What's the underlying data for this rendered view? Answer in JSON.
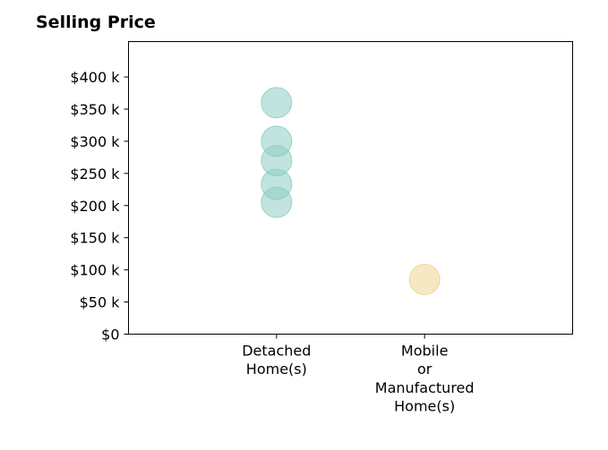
{
  "chart_data": {
    "type": "scatter",
    "title": "Selling Price",
    "xlabel": "",
    "ylabel": "",
    "categories": [
      [
        "Detached",
        "Home(s)"
      ],
      [
        "Mobile",
        "or",
        "Manufactured",
        "Home(s)"
      ]
    ],
    "y_ticks": [
      {
        "value": 0,
        "label": "$0"
      },
      {
        "value": 50000,
        "label": "$50 k"
      },
      {
        "value": 100000,
        "label": "$100 k"
      },
      {
        "value": 150000,
        "label": "$150 k"
      },
      {
        "value": 200000,
        "label": "$200 k"
      },
      {
        "value": 250000,
        "label": "$250 k"
      },
      {
        "value": 300000,
        "label": "$300 k"
      },
      {
        "value": 350000,
        "label": "$350 k"
      },
      {
        "value": 400000,
        "label": "$400 k"
      }
    ],
    "ylim": [
      0,
      455000
    ],
    "xlim": [
      -1,
      2
    ],
    "grid": false,
    "series": [
      {
        "category_index": 0,
        "color": "#8ecdc4",
        "edge": "#7cc4ba",
        "values": [
          205000,
          233000,
          270000,
          300000,
          360000
        ]
      },
      {
        "category_index": 1,
        "color": "#f0d594",
        "edge": "#e9c97a",
        "values": [
          85000
        ]
      }
    ]
  }
}
